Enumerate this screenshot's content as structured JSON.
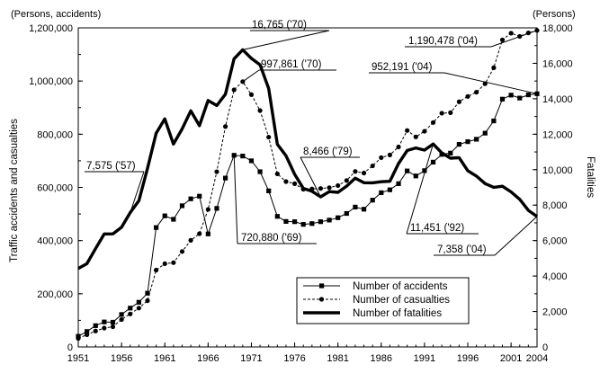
{
  "chart_data": {
    "type": "line",
    "left_unit": "(Persons, accidents)",
    "right_unit": "(Persons)",
    "ylabel_left": "Traffic accidents and casualties",
    "ylabel_right": "Fatalities",
    "ylim_left": [
      0,
      1200000
    ],
    "ylim_right": [
      0,
      18000
    ],
    "x_range": [
      1951,
      2004
    ],
    "x_ticks": [
      "1951",
      "1956",
      "1961",
      "1966",
      "1971",
      "1976",
      "1981",
      "1986",
      "1991",
      "1996",
      "2001",
      "2004"
    ],
    "y_left_ticks": [
      "0",
      "200,000",
      "400,000",
      "600,000",
      "800,000",
      "1,000,000",
      "1,200,000"
    ],
    "y_right_ticks": [
      "0",
      "2,000",
      "4,000",
      "6,000",
      "8,000",
      "10,000",
      "12,000",
      "14,000",
      "16,000",
      "18,000"
    ],
    "x": [
      1951,
      1952,
      1953,
      1954,
      1955,
      1956,
      1957,
      1958,
      1959,
      1960,
      1961,
      1962,
      1963,
      1964,
      1965,
      1966,
      1967,
      1968,
      1969,
      1970,
      1971,
      1972,
      1973,
      1974,
      1975,
      1976,
      1977,
      1978,
      1979,
      1980,
      1981,
      1982,
      1983,
      1984,
      1985,
      1986,
      1987,
      1988,
      1989,
      1990,
      1991,
      1992,
      1993,
      1994,
      1995,
      1996,
      1997,
      1998,
      1999,
      2000,
      2001,
      2002,
      2003,
      2004
    ],
    "series": [
      {
        "name": "Number of accidents",
        "axis": "left",
        "style": "solid-square",
        "values": [
          40000,
          58000,
          80000,
          94000,
          93000,
          122000,
          146000,
          168000,
          202000,
          449000,
          493000,
          480000,
          531000,
          557000,
          567000,
          425000,
          521000,
          635000,
          720880,
          718000,
          700000,
          659000,
          587000,
          491000,
          472000,
          471000,
          461000,
          464000,
          471000,
          477000,
          486000,
          502000,
          526000,
          518000,
          552000,
          580000,
          591000,
          614000,
          662000,
          643000,
          663000,
          695000,
          724000,
          729000,
          762000,
          772000,
          781000,
          804000,
          850000,
          932000,
          947000,
          936000,
          948000,
          952191
        ]
      },
      {
        "name": "Number of casualties",
        "axis": "left",
        "style": "dashed-circle",
        "values": [
          32000,
          46000,
          60000,
          71000,
          76000,
          103000,
          124000,
          146000,
          174000,
          289000,
          313000,
          317000,
          359000,
          401000,
          426000,
          517000,
          659000,
          829000,
          967000,
          997861,
          949000,
          889000,
          789000,
          651000,
          622000,
          614000,
          593000,
          594000,
          596000,
          599000,
          607000,
          626000,
          660000,
          654000,
          681000,
          712000,
          722000,
          752000,
          814000,
          790000,
          811000,
          844000,
          879000,
          881000,
          922000,
          942000,
          958000,
          990000,
          1050000,
          1155000,
          1180000,
          1168000,
          1181000,
          1190478
        ]
      },
      {
        "name": "Number of fatalities",
        "axis": "right",
        "style": "bold",
        "values": [
          4429,
          4696,
          5544,
          6374,
          6379,
          6751,
          7575,
          8248,
          10079,
          12055,
          12865,
          11445,
          12301,
          13318,
          12484,
          13904,
          13618,
          14256,
          16257,
          16765,
          16278,
          15918,
          14574,
          11432,
          10792,
          9734,
          8945,
          8783,
          8466,
          8760,
          8719,
          9073,
          9520,
          9262,
          9261,
          9317,
          9347,
          10344,
          11086,
          11227,
          11105,
          11451,
          10942,
          10649,
          10679,
          9942,
          9640,
          9211,
          9006,
          9066,
          8747,
          8326,
          7702,
          7358
        ]
      }
    ],
    "annotations": [
      {
        "text": "16,765 ('70)",
        "series": "Number of fatalities",
        "x": 1970
      },
      {
        "text": "997,861 ('70)",
        "series": "Number of casualties",
        "x": 1970
      },
      {
        "text": "720,880 ('69)",
        "series": "Number of accidents",
        "x": 1969
      },
      {
        "text": "7,575 ('57)",
        "series": "Number of fatalities",
        "x": 1957
      },
      {
        "text": "8,466 ('79)",
        "series": "Number of fatalities",
        "x": 1979
      },
      {
        "text": "1,190,478 ('04)",
        "series": "Number of casualties",
        "x": 2004
      },
      {
        "text": "952,191 ('04)",
        "series": "Number of accidents",
        "x": 2004
      },
      {
        "text": "11,451 ('92)",
        "series": "Number of fatalities",
        "x": 1992
      },
      {
        "text": "7,358 ('04)",
        "series": "Number of fatalities",
        "x": 2004
      }
    ],
    "legend_position": "bottom-right",
    "grid": false
  }
}
